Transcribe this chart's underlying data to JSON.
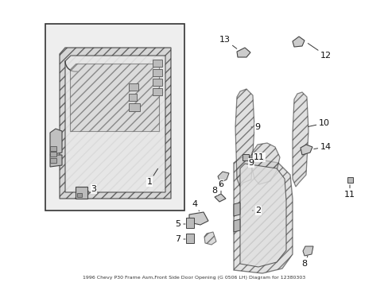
{
  "bg_color": "#ffffff",
  "fig_width": 4.89,
  "fig_height": 3.6,
  "dpi": 100,
  "part_edge": "#222222",
  "part_fill": "#d8d8d8",
  "hatch_color": "#888888",
  "label_fs": 8,
  "title": "1996 Chevy P30 Frame Asm,Front Side Door Opening (G 0506 LH) Diagram for 12380303"
}
